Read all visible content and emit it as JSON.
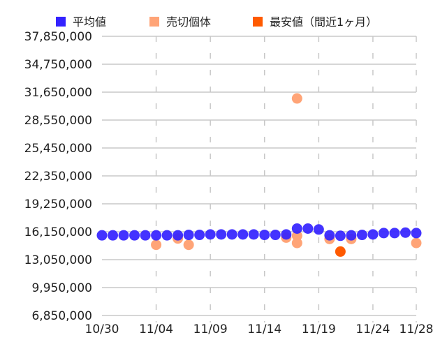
{
  "legend": [
    {
      "label": "平均値",
      "color": "#3322ff",
      "icon": "square-swatch-icon"
    },
    {
      "label": "売切個体",
      "color": "#ffa477",
      "icon": "square-swatch-icon"
    },
    {
      "label": "最安値（間近1ヶ月）",
      "color": "#ff5a00",
      "icon": "square-swatch-icon"
    }
  ],
  "axes": {
    "y_ticks": [
      "37,850,000",
      "34,750,000",
      "31,650,000",
      "28,550,000",
      "25,450,000",
      "22,350,000",
      "19,250,000",
      "16,150,000",
      "13,050,000",
      "9,950,000",
      "6,850,000"
    ],
    "x_ticks": [
      "10/30",
      "11/04",
      "11/09",
      "11/14",
      "11/19",
      "11/24",
      "11/28"
    ]
  },
  "chart_data": {
    "type": "scatter",
    "title": "",
    "xlabel": "",
    "ylabel": "",
    "ylim": [
      6850000,
      37850000
    ],
    "xlim": [
      "10/30",
      "11/28"
    ],
    "grid": {
      "horizontal": true,
      "vertical_dashed": true
    },
    "legend_position": "top",
    "x_tick_labels": [
      "10/30",
      "11/04",
      "11/09",
      "11/14",
      "11/19",
      "11/24",
      "11/28"
    ],
    "y_tick_labels": [
      "37,850,000",
      "34,750,000",
      "31,650,000",
      "28,550,000",
      "25,450,000",
      "22,350,000",
      "19,250,000",
      "16,150,000",
      "13,050,000",
      "9,950,000",
      "6,850,000"
    ],
    "series": [
      {
        "name": "平均値",
        "color": "#3322ff",
        "points": [
          {
            "x": "10/30",
            "y": 15750000
          },
          {
            "x": "10/31",
            "y": 15750000
          },
          {
            "x": "11/01",
            "y": 15750000
          },
          {
            "x": "11/02",
            "y": 15750000
          },
          {
            "x": "11/03",
            "y": 15750000
          },
          {
            "x": "11/04",
            "y": 15750000
          },
          {
            "x": "11/05",
            "y": 15750000
          },
          {
            "x": "11/06",
            "y": 15750000
          },
          {
            "x": "11/07",
            "y": 15800000
          },
          {
            "x": "11/08",
            "y": 15800000
          },
          {
            "x": "11/09",
            "y": 15850000
          },
          {
            "x": "11/10",
            "y": 15850000
          },
          {
            "x": "11/11",
            "y": 15850000
          },
          {
            "x": "11/12",
            "y": 15850000
          },
          {
            "x": "11/13",
            "y": 15850000
          },
          {
            "x": "11/14",
            "y": 15800000
          },
          {
            "x": "11/15",
            "y": 15800000
          },
          {
            "x": "11/16",
            "y": 15850000
          },
          {
            "x": "11/17",
            "y": 16500000
          },
          {
            "x": "11/18",
            "y": 16500000
          },
          {
            "x": "11/19",
            "y": 16400000
          },
          {
            "x": "11/20",
            "y": 15750000
          },
          {
            "x": "11/21",
            "y": 15700000
          },
          {
            "x": "11/22",
            "y": 15750000
          },
          {
            "x": "11/23",
            "y": 15800000
          },
          {
            "x": "11/24",
            "y": 15850000
          },
          {
            "x": "11/25",
            "y": 16000000
          },
          {
            "x": "11/26",
            "y": 16000000
          },
          {
            "x": "11/27",
            "y": 16050000
          },
          {
            "x": "11/28",
            "y": 16000000
          }
        ]
      },
      {
        "name": "売切個体",
        "color": "#ffa477",
        "points": [
          {
            "x": "11/04",
            "y": 14700000
          },
          {
            "x": "11/06",
            "y": 15400000
          },
          {
            "x": "11/07",
            "y": 14700000
          },
          {
            "x": "11/16",
            "y": 15500000
          },
          {
            "x": "11/17",
            "y": 30950000
          },
          {
            "x": "11/17",
            "y": 15700000
          },
          {
            "x": "11/17",
            "y": 14900000
          },
          {
            "x": "11/20",
            "y": 15350000
          },
          {
            "x": "11/22",
            "y": 15350000
          },
          {
            "x": "11/28",
            "y": 14900000
          }
        ]
      },
      {
        "name": "最安値（間近1ヶ月）",
        "color": "#ff5a00",
        "points": [
          {
            "x": "11/21",
            "y": 13950000
          }
        ]
      }
    ]
  }
}
